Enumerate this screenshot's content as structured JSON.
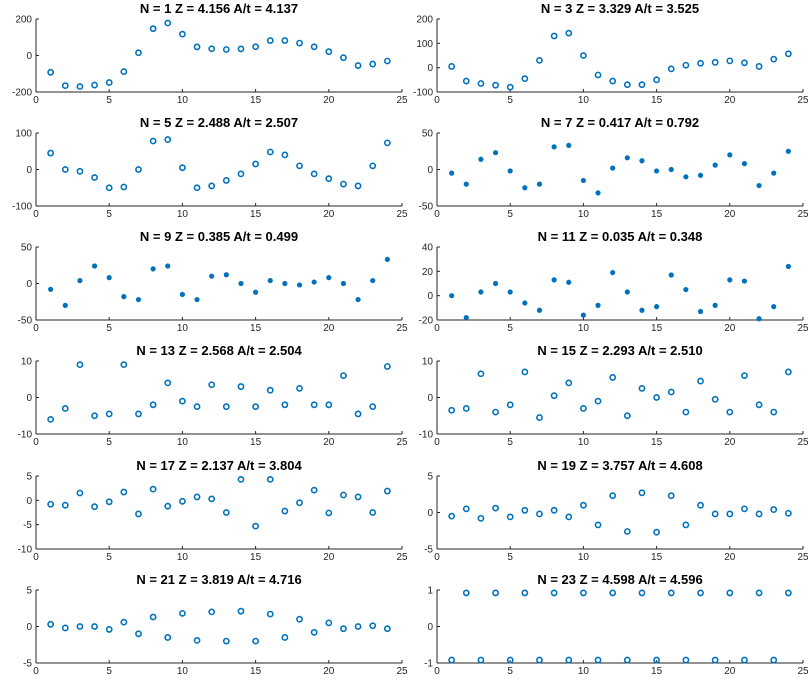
{
  "figure": {
    "marker_color": "#0072BD"
  },
  "chart_data": [
    {
      "type": "scatter",
      "title": "N = 1     Z = 4.156     A/t = 4.137",
      "xlim": [
        0,
        25
      ],
      "ylim": [
        -200,
        200
      ],
      "xticks": [
        "0",
        "5",
        "10",
        "15",
        "20",
        "25"
      ],
      "yticks": [
        "-200",
        "0",
        "200"
      ],
      "ytick_values": [
        -200,
        0,
        200
      ],
      "marker": "open",
      "x": [
        1,
        2,
        3,
        4,
        5,
        6,
        7,
        8,
        9,
        10,
        11,
        12,
        13,
        14,
        15,
        16,
        17,
        18,
        19,
        20,
        21,
        22,
        23,
        24
      ],
      "y": [
        -92,
        -165,
        -170,
        -162,
        -148,
        -88,
        15,
        147,
        178,
        117,
        47,
        37,
        33,
        36,
        48,
        82,
        82,
        68,
        48,
        21,
        -12,
        -55,
        -47,
        -30
      ]
    },
    {
      "type": "scatter",
      "title": "N = 3     Z = 3.329     A/t = 3.525",
      "xlim": [
        0,
        25
      ],
      "ylim": [
        -100,
        200
      ],
      "xticks": [
        "0",
        "5",
        "10",
        "15",
        "20",
        "25"
      ],
      "yticks": [
        "-100",
        "0",
        "100",
        "200"
      ],
      "ytick_values": [
        -100,
        0,
        100,
        200
      ],
      "marker": "open",
      "x": [
        1,
        2,
        3,
        4,
        5,
        6,
        7,
        8,
        9,
        10,
        11,
        12,
        13,
        14,
        15,
        16,
        17,
        18,
        19,
        20,
        21,
        22,
        23,
        24
      ],
      "y": [
        5,
        -55,
        -65,
        -72,
        -80,
        -45,
        30,
        130,
        142,
        50,
        -30,
        -55,
        -70,
        -70,
        -50,
        -5,
        10,
        18,
        22,
        28,
        20,
        5,
        35,
        57
      ]
    },
    {
      "type": "scatter",
      "title": "N = 5     Z = 2.488     A/t = 2.507",
      "xlim": [
        0,
        25
      ],
      "ylim": [
        -100,
        100
      ],
      "xticks": [
        "0",
        "5",
        "10",
        "15",
        "20",
        "25"
      ],
      "yticks": [
        "-100",
        "0",
        "100"
      ],
      "ytick_values": [
        -100,
        0,
        100
      ],
      "marker": "open",
      "x": [
        1,
        2,
        3,
        4,
        5,
        6,
        7,
        8,
        9,
        10,
        11,
        12,
        13,
        14,
        15,
        16,
        17,
        18,
        19,
        20,
        21,
        22,
        23,
        24
      ],
      "y": [
        45,
        0,
        -5,
        -22,
        -50,
        -48,
        0,
        78,
        82,
        5,
        -50,
        -45,
        -30,
        -12,
        15,
        48,
        40,
        10,
        -12,
        -25,
        -40,
        -45,
        10,
        73
      ]
    },
    {
      "type": "scatter",
      "title": "N = 7     Z = 0.417     A/t = 0.792",
      "xlim": [
        0,
        25
      ],
      "ylim": [
        -50,
        50
      ],
      "xticks": [
        "0",
        "5",
        "10",
        "15",
        "20",
        "25"
      ],
      "yticks": [
        "-50",
        "0",
        "50"
      ],
      "ytick_values": [
        -50,
        0,
        50
      ],
      "marker": "filled",
      "x": [
        1,
        2,
        3,
        4,
        5,
        6,
        7,
        8,
        9,
        10,
        11,
        12,
        13,
        14,
        15,
        16,
        17,
        18,
        19,
        20,
        21,
        22,
        23,
        24
      ],
      "y": [
        -5,
        -20,
        14,
        23,
        -2,
        -25,
        -20,
        31,
        33,
        -15,
        -32,
        2,
        16,
        12,
        -2,
        0,
        -10,
        -8,
        6,
        20,
        8,
        -22,
        -5,
        25
      ]
    },
    {
      "type": "scatter",
      "title": "N = 9     Z = 0.385     A/t = 0.499",
      "xlim": [
        0,
        25
      ],
      "ylim": [
        -50,
        50
      ],
      "xticks": [
        "0",
        "5",
        "10",
        "15",
        "20",
        "25"
      ],
      "yticks": [
        "-50",
        "0",
        "50"
      ],
      "ytick_values": [
        -50,
        0,
        50
      ],
      "marker": "filled",
      "x": [
        1,
        2,
        3,
        4,
        5,
        6,
        7,
        8,
        9,
        10,
        11,
        12,
        13,
        14,
        15,
        16,
        17,
        18,
        19,
        20,
        21,
        22,
        23,
        24
      ],
      "y": [
        -8,
        -30,
        4,
        24,
        8,
        -18,
        -22,
        20,
        24,
        -15,
        -22,
        10,
        12,
        0,
        -12,
        4,
        0,
        -2,
        2,
        8,
        0,
        -22,
        4,
        33
      ]
    },
    {
      "type": "scatter",
      "title": "N = 11     Z = 0.035     A/t = 0.348",
      "xlim": [
        0,
        25
      ],
      "ylim": [
        -20,
        40
      ],
      "xticks": [
        "0",
        "5",
        "10",
        "15",
        "20",
        "25"
      ],
      "yticks": [
        "-20",
        "0",
        "20",
        "40"
      ],
      "ytick_values": [
        -20,
        0,
        20,
        40
      ],
      "marker": "filled",
      "x": [
        1,
        2,
        3,
        4,
        5,
        6,
        7,
        8,
        9,
        10,
        11,
        12,
        13,
        14,
        15,
        16,
        17,
        18,
        19,
        20,
        21,
        22,
        23,
        24
      ],
      "y": [
        0,
        -18,
        3,
        10,
        3,
        -6,
        -12,
        13,
        11,
        -16,
        -8,
        19,
        3,
        -12,
        -9,
        17,
        5,
        -13,
        -8,
        13,
        12,
        -19,
        -9,
        24
      ]
    },
    {
      "type": "scatter",
      "title": "N = 13     Z = 2.568     A/t = 2.504",
      "xlim": [
        0,
        25
      ],
      "ylim": [
        -10,
        10
      ],
      "xticks": [
        "0",
        "5",
        "10",
        "15",
        "20",
        "25"
      ],
      "yticks": [
        "-10",
        "0",
        "10"
      ],
      "ytick_values": [
        -10,
        0,
        10
      ],
      "marker": "open",
      "x": [
        1,
        2,
        3,
        4,
        5,
        6,
        7,
        8,
        9,
        10,
        11,
        12,
        13,
        14,
        15,
        16,
        17,
        18,
        19,
        20,
        21,
        22,
        23,
        24
      ],
      "y": [
        -6,
        -3,
        9,
        -5,
        -4.5,
        9,
        -4.5,
        -2,
        4,
        -1,
        -2.5,
        3.5,
        -2.5,
        3,
        -2.5,
        2,
        -2,
        2.5,
        -2,
        -2,
        6,
        -4.5,
        -2.5,
        8.5
      ]
    },
    {
      "type": "scatter",
      "title": "N = 15     Z = 2.293     A/t = 2.510",
      "xlim": [
        0,
        25
      ],
      "ylim": [
        -10,
        10
      ],
      "xticks": [
        "0",
        "5",
        "10",
        "15",
        "20",
        "25"
      ],
      "yticks": [
        "-10",
        "0",
        "10"
      ],
      "ytick_values": [
        -10,
        0,
        10
      ],
      "marker": "open",
      "x": [
        1,
        2,
        3,
        4,
        5,
        6,
        7,
        8,
        9,
        10,
        11,
        12,
        13,
        14,
        15,
        16,
        17,
        18,
        19,
        20,
        21,
        22,
        23,
        24
      ],
      "y": [
        -3.5,
        -3,
        6.5,
        -4,
        -2,
        7,
        -5.5,
        0.5,
        4,
        -3,
        -1,
        5.5,
        -5,
        2.5,
        0,
        1.5,
        -4,
        4.5,
        -0.5,
        -4,
        6,
        -2,
        -4,
        7
      ]
    },
    {
      "type": "scatter",
      "title": "N = 17     Z = 2.137     A/t = 3.804",
      "xlim": [
        0,
        25
      ],
      "ylim": [
        -10,
        5
      ],
      "xticks": [
        "0",
        "5",
        "10",
        "15",
        "20",
        "25"
      ],
      "yticks": [
        "-10",
        "-5",
        "0",
        "5"
      ],
      "ytick_values": [
        -10,
        -5,
        0,
        5
      ],
      "marker": "open",
      "x": [
        1,
        2,
        3,
        4,
        5,
        6,
        7,
        8,
        9,
        10,
        11,
        12,
        13,
        14,
        15,
        16,
        17,
        18,
        19,
        20,
        21,
        22,
        23,
        24
      ],
      "y": [
        -0.8,
        -1,
        1.5,
        -1.3,
        -0.3,
        1.7,
        -2.8,
        2.3,
        -1.2,
        -0.2,
        0.7,
        0.3,
        -2.5,
        4.3,
        -5.3,
        4.3,
        -2.2,
        -0.5,
        2.1,
        -2.6,
        1.1,
        0.7,
        -2.5,
        1.9
      ]
    },
    {
      "type": "scatter",
      "title": "N = 19     Z = 3.757     A/t = 4.608",
      "xlim": [
        0,
        25
      ],
      "ylim": [
        -5,
        5
      ],
      "xticks": [
        "0",
        "5",
        "10",
        "15",
        "20",
        "25"
      ],
      "yticks": [
        "-5",
        "0",
        "5"
      ],
      "ytick_values": [
        -5,
        0,
        5
      ],
      "marker": "open",
      "x": [
        1,
        2,
        3,
        4,
        5,
        6,
        7,
        8,
        9,
        10,
        11,
        12,
        13,
        14,
        15,
        16,
        17,
        18,
        19,
        20,
        21,
        22,
        23,
        24
      ],
      "y": [
        -0.5,
        0.5,
        -0.8,
        0.6,
        -0.6,
        0.3,
        -0.2,
        0.3,
        -0.6,
        1,
        -1.7,
        2.3,
        -2.6,
        2.7,
        -2.7,
        2.3,
        -1.7,
        1,
        -0.2,
        -0.2,
        0.5,
        -0.2,
        0.4,
        -0.1
      ]
    },
    {
      "type": "scatter",
      "title": "N = 21     Z = 3.819     A/t = 4.716",
      "xlim": [
        0,
        25
      ],
      "ylim": [
        -5,
        5
      ],
      "xticks": [
        "0",
        "5",
        "10",
        "15",
        "20",
        "25"
      ],
      "yticks": [
        "-5",
        "0",
        "5"
      ],
      "ytick_values": [
        -5,
        0,
        5
      ],
      "marker": "open",
      "x": [
        1,
        2,
        3,
        4,
        5,
        6,
        7,
        8,
        9,
        10,
        11,
        12,
        13,
        14,
        15,
        16,
        17,
        18,
        19,
        20,
        21,
        22,
        23,
        24
      ],
      "y": [
        0.3,
        -0.2,
        0,
        0,
        -0.4,
        0.6,
        -1,
        1.3,
        -1.5,
        1.8,
        -1.9,
        2,
        -2,
        2.1,
        -2,
        1.7,
        -1.5,
        1,
        -0.8,
        0.5,
        -0.3,
        0,
        0.1,
        -0.3
      ]
    },
    {
      "type": "scatter",
      "title": "N = 23     Z = 4.598     A/t = 4.596",
      "xlim": [
        0,
        25
      ],
      "ylim": [
        -1,
        1
      ],
      "xticks": [
        "0",
        "5",
        "10",
        "15",
        "20",
        "25"
      ],
      "yticks": [
        "-1",
        "0",
        "1"
      ],
      "ytick_values": [
        -1,
        0,
        1
      ],
      "marker": "open",
      "x": [
        1,
        2,
        3,
        4,
        5,
        6,
        7,
        8,
        9,
        10,
        11,
        12,
        13,
        14,
        15,
        16,
        17,
        18,
        19,
        20,
        21,
        22,
        23,
        24
      ],
      "y": [
        -0.92,
        0.92,
        -0.92,
        0.92,
        -0.92,
        0.92,
        -0.92,
        0.92,
        -0.92,
        0.92,
        -0.92,
        0.92,
        -0.92,
        0.92,
        -0.92,
        0.92,
        -0.92,
        0.92,
        -0.92,
        0.92,
        -0.92,
        0.92,
        -0.92,
        0.92
      ]
    }
  ]
}
